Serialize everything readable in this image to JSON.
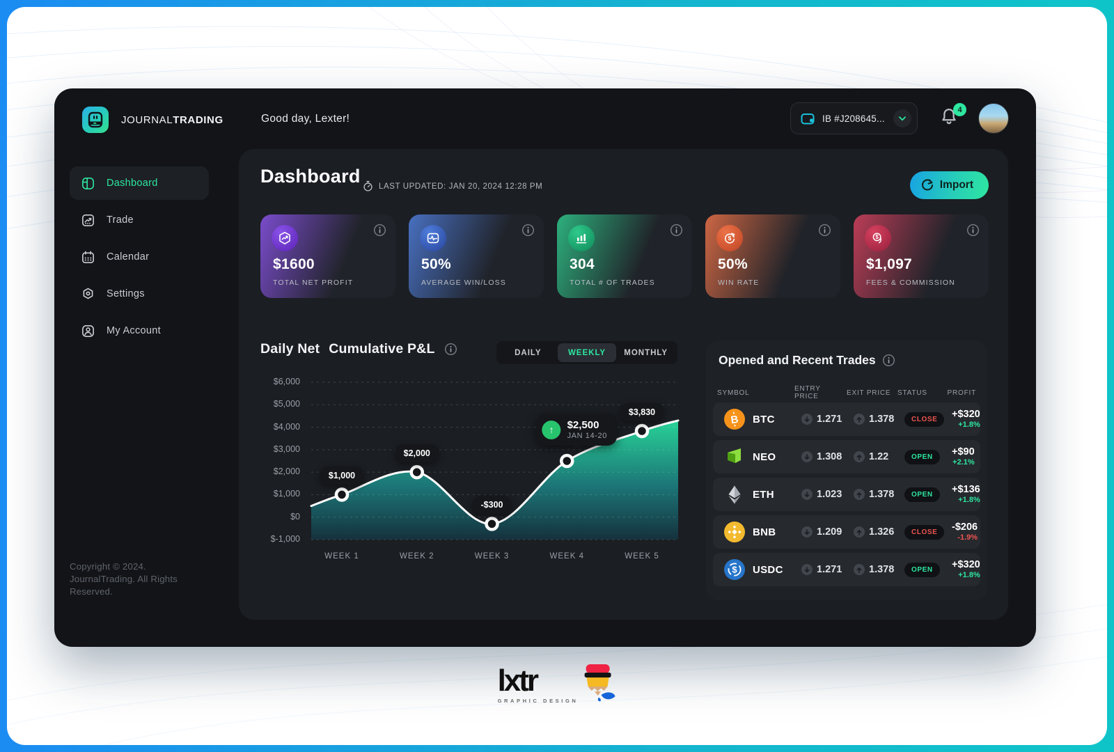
{
  "brand": {
    "name_regular": "JOURNAL",
    "name_bold": "TRADING"
  },
  "topbar": {
    "greeting": "Good day, Lexter!",
    "account_label": "IB #J208645...",
    "notifications": "4"
  },
  "sidebar": {
    "items": [
      {
        "label": "Dashboard",
        "active": true
      },
      {
        "label": "Trade",
        "active": false
      },
      {
        "label": "Calendar",
        "active": false
      },
      {
        "label": "Settings",
        "active": false
      },
      {
        "label": "My Account",
        "active": false
      }
    ],
    "copyright": "Copyright © 2024. JournalTrading. All Rights Reserved."
  },
  "header": {
    "title": "Dashboard",
    "last_updated": "LAST UPDATED: JAN 20, 2024  12:28 PM",
    "import_label": "Import"
  },
  "stats": [
    {
      "value": "$1600",
      "label": "TOTAL NET PROFIT",
      "accent": "#8a53e8",
      "accent2": "#5b21b6",
      "icon": "trend-hexagon-icon"
    },
    {
      "value": "50%",
      "label": "AVERAGE WIN/LOSS",
      "accent": "#4f7ddb",
      "accent2": "#27449c",
      "icon": "pulse-icon"
    },
    {
      "value": "304",
      "label": "TOTAL # OF TRADES",
      "accent": "#2fc98c",
      "accent2": "#0f8a58",
      "icon": "bar-chart-icon"
    },
    {
      "value": "50%",
      "label": "WIN RATE",
      "accent": "#ec7248",
      "accent2": "#bf4424",
      "icon": "dollar-rotate-icon"
    },
    {
      "value": "$1,097",
      "label": "FEES & COMMISSION",
      "accent": "#d6415f",
      "accent2": "#96203c",
      "icon": "coins-icon"
    }
  ],
  "chart": {
    "title_a": "Daily Net",
    "title_b": "Cumulative P&L",
    "tabs": [
      {
        "label": "DAILY",
        "active": false
      },
      {
        "label": "WEEKLY",
        "active": true
      },
      {
        "label": "MONTHLY",
        "active": false
      }
    ]
  },
  "chart_data": {
    "type": "area",
    "title": "Daily Net Cumulative P&L",
    "x_labels": [
      "WEEK 1",
      "WEEK 2",
      "WEEK 3",
      "WEEK 4",
      "WEEK 5"
    ],
    "values": [
      1000,
      2000,
      -300,
      2500,
      3830
    ],
    "point_labels": [
      "$1,000",
      "$2,000",
      "-$300",
      "$2,500",
      "$3,830"
    ],
    "tooltip": {
      "point_index": 3,
      "value": "$2,500",
      "period": "JAN 14-20"
    },
    "edge_start_value": 500,
    "edge_end_value": 4300,
    "ylim": [
      -1000,
      6000
    ],
    "y_tick_step": 1000,
    "y_ticks": [
      "$6,000",
      "$5,000",
      "$4,000",
      "$3,000",
      "$2,000",
      "$1,000",
      "$0",
      "$-1,000"
    ],
    "grid": "dashed-horizontal",
    "legend": "none",
    "line_color": "#ffffff",
    "area_top_color": "#29dd9e",
    "area_mid_color": "#1c7f80",
    "area_bottom_color": "#14333f"
  },
  "trades": {
    "title": "Opened and Recent Trades",
    "columns": [
      "SYMBOL",
      "ENTRY PRICE",
      "EXIT PRICE",
      "STATUS",
      "PROFIT"
    ],
    "rows": [
      {
        "symbol": "BTC",
        "entry": "1.271",
        "exit": "1.378",
        "status": "CLOSE",
        "profit": "+$320",
        "percent": "+1.8%"
      },
      {
        "symbol": "NEO",
        "entry": "1.308",
        "exit": "1.22",
        "status": "OPEN",
        "profit": "+$90",
        "percent": "+2.1%"
      },
      {
        "symbol": "ETH",
        "entry": "1.023",
        "exit": "1.378",
        "status": "OPEN",
        "profit": "+$136",
        "percent": "+1.8%"
      },
      {
        "symbol": "BNB",
        "entry": "1.209",
        "exit": "1.326",
        "status": "CLOSE",
        "profit": "-$206",
        "percent": "-1.9%"
      },
      {
        "symbol": "USDC",
        "entry": "1.271",
        "exit": "1.378",
        "status": "OPEN",
        "profit": "+$320",
        "percent": "+1.8%"
      }
    ]
  },
  "maker": {
    "name": "lxtr",
    "subtitle": "GRAPHIC DESIGN"
  }
}
